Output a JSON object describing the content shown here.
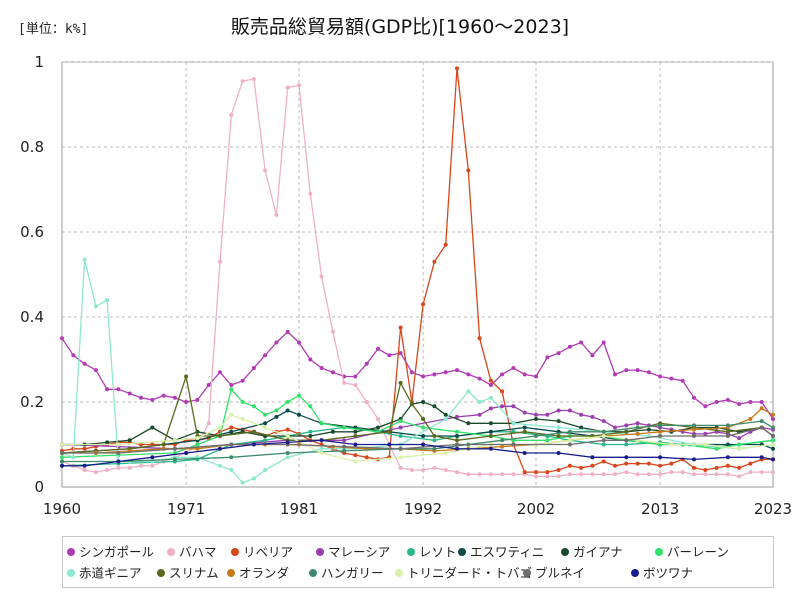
{
  "header": {
    "unit": "[単位：k%]",
    "title": "販売品総貿易額(GDP比)[1960〜2023]"
  },
  "chart_data": {
    "type": "line",
    "title": "販売品総貿易額(GDP比)[1960〜2023]",
    "xlabel": "",
    "ylabel": "",
    "unit": "[単位：k%]",
    "xlim": [
      1960,
      2023
    ],
    "ylim": [
      0,
      1
    ],
    "x_ticks": [
      1960,
      1971,
      1981,
      1992,
      2002,
      2013,
      2023
    ],
    "y_ticks": [
      0,
      0.2,
      0.4,
      0.6,
      0.8,
      1
    ],
    "y_tick_labels": [
      "0",
      "0.2",
      "0.4",
      "0.6",
      "0.8",
      "1"
    ],
    "grid": true,
    "legend_position": "bottom",
    "series": [
      {
        "name": "シンガポール",
        "color": "#b23bb5",
        "x": [
          1960,
          1961,
          1962,
          1963,
          1964,
          1965,
          1966,
          1967,
          1968,
          1969,
          1970,
          1971,
          1972,
          1973,
          1974,
          1975,
          1976,
          1977,
          1978,
          1979,
          1980,
          1981,
          1982,
          1983,
          1984,
          1985,
          1986,
          1987,
          1988,
          1989,
          1990,
          1991,
          1992,
          1993,
          1994,
          1995,
          1996,
          1997,
          1998,
          1999,
          2000,
          2001,
          2002,
          2003,
          2004,
          2005,
          2006,
          2007,
          2008,
          2009,
          2010,
          2011,
          2012,
          2013,
          2014,
          2015,
          2016,
          2017,
          2018,
          2019,
          2020,
          2021,
          2022,
          2023
        ],
        "y": [
          0.35,
          0.31,
          0.29,
          0.275,
          0.23,
          0.23,
          0.22,
          0.21,
          0.205,
          0.215,
          0.21,
          0.2,
          0.205,
          0.24,
          0.27,
          0.24,
          0.25,
          0.28,
          0.31,
          0.34,
          0.365,
          0.34,
          0.3,
          0.28,
          0.27,
          0.26,
          0.26,
          0.29,
          0.325,
          0.31,
          0.315,
          0.27,
          0.26,
          0.265,
          0.27,
          0.275,
          0.265,
          0.255,
          0.24,
          0.265,
          0.28,
          0.265,
          0.26,
          0.305,
          0.315,
          0.33,
          0.34,
          0.31,
          0.34,
          0.265,
          0.275,
          0.275,
          0.27,
          0.26,
          0.255,
          0.25,
          0.21,
          0.19,
          0.2,
          0.205,
          0.195,
          0.2,
          0.2,
          0.16
        ]
      },
      {
        "name": "バハマ",
        "color": "#f0b0c8",
        "x": [
          1960,
          1961,
          1962,
          1963,
          1964,
          1965,
          1966,
          1967,
          1968,
          1969,
          1970,
          1971,
          1972,
          1973,
          1974,
          1975,
          1976,
          1977,
          1978,
          1979,
          1980,
          1981,
          1982,
          1983,
          1984,
          1985,
          1986,
          1987,
          1988,
          1989,
          1990,
          1991,
          1992,
          1993,
          1994,
          1995,
          1996,
          1997,
          1998,
          1999,
          2000,
          2001,
          2002,
          2003,
          2004,
          2005,
          2006,
          2007,
          2008,
          2009,
          2010,
          2011,
          2012,
          2013,
          2014,
          2015,
          2016,
          2017,
          2018,
          2019,
          2020,
          2021,
          2022,
          2023
        ],
        "y": [
          0.06,
          0.05,
          0.04,
          0.035,
          0.04,
          0.045,
          0.045,
          0.05,
          0.05,
          0.06,
          0.07,
          0.08,
          0.1,
          0.15,
          0.53,
          0.875,
          0.955,
          0.96,
          0.745,
          0.64,
          0.94,
          0.945,
          0.69,
          0.495,
          0.365,
          0.245,
          0.24,
          0.2,
          0.16,
          0.1,
          0.045,
          0.04,
          0.04,
          0.045,
          0.04,
          0.035,
          0.03,
          0.03,
          0.03,
          0.03,
          0.03,
          0.03,
          0.025,
          0.025,
          0.025,
          0.03,
          0.03,
          0.03,
          0.03,
          0.03,
          0.035,
          0.03,
          0.03,
          0.03,
          0.035,
          0.035,
          0.03,
          0.03,
          0.03,
          0.03,
          0.025,
          0.035,
          0.035,
          0.035
        ]
      },
      {
        "name": "リベリア",
        "color": "#d9461c",
        "x": [
          1960,
          1961,
          1962,
          1963,
          1964,
          1965,
          1966,
          1967,
          1968,
          1969,
          1970,
          1971,
          1972,
          1973,
          1974,
          1975,
          1976,
          1977,
          1978,
          1979,
          1980,
          1981,
          1982,
          1983,
          1984,
          1985,
          1986,
          1987,
          1988,
          1989,
          1990,
          1991,
          1992,
          1993,
          1994,
          1995,
          1996,
          1997,
          1998,
          1999,
          2000,
          2001,
          2002,
          2003,
          2004,
          2005,
          2006,
          2007,
          2008,
          2009,
          2010,
          2011,
          2012,
          2013,
          2014,
          2015,
          2016,
          2017,
          2018,
          2019,
          2020,
          2021,
          2022,
          2023
        ],
        "y": [
          0.085,
          0.09,
          0.09,
          0.095,
          0.1,
          0.105,
          0.105,
          0.1,
          0.1,
          0.1,
          0.1,
          0.11,
          0.11,
          0.115,
          0.13,
          0.14,
          0.135,
          0.13,
          0.12,
          0.13,
          0.135,
          0.125,
          0.11,
          0.1,
          0.09,
          0.08,
          0.075,
          0.07,
          0.065,
          0.07,
          0.375,
          0.2,
          0.43,
          0.53,
          0.57,
          0.985,
          0.745,
          0.35,
          0.25,
          0.225,
          0.1,
          0.035,
          0.035,
          0.035,
          0.04,
          0.05,
          0.045,
          0.05,
          0.06,
          0.05,
          0.055,
          0.055,
          0.055,
          0.05,
          0.055,
          0.065,
          0.045,
          0.04,
          0.045,
          0.05,
          0.045,
          0.055,
          0.065,
          0.065
        ]
      },
      {
        "name": "マレーシア",
        "color": "#9b3fb0",
        "x": [
          1960,
          1965,
          1970,
          1975,
          1980,
          1985,
          1990,
          1995,
          1997,
          1998,
          1999,
          2000,
          2001,
          2002,
          2003,
          2004,
          2005,
          2006,
          2007,
          2008,
          2009,
          2010,
          2011,
          2012,
          2013,
          2014,
          2015,
          2016,
          2017,
          2018,
          2019,
          2020,
          2021,
          2022,
          2023
        ],
        "y": [
          0.1,
          0.095,
          0.09,
          0.1,
          0.11,
          0.11,
          0.14,
          0.165,
          0.17,
          0.185,
          0.19,
          0.19,
          0.175,
          0.17,
          0.17,
          0.18,
          0.18,
          0.17,
          0.165,
          0.155,
          0.14,
          0.145,
          0.15,
          0.145,
          0.14,
          0.135,
          0.13,
          0.125,
          0.125,
          0.13,
          0.125,
          0.115,
          0.13,
          0.14,
          0.135
        ]
      },
      {
        "name": "レソト",
        "color": "#2ab88a",
        "x": [
          1960,
          1965,
          1970,
          1972,
          1975,
          1978,
          1980,
          1982,
          1985,
          1988,
          1990,
          1993,
          1995,
          1998,
          2000,
          2003,
          2005,
          2008,
          2010,
          2013,
          2015,
          2018,
          2020,
          2023
        ],
        "y": [
          0.05,
          0.055,
          0.06,
          0.065,
          0.1,
          0.11,
          0.12,
          0.13,
          0.14,
          0.13,
          0.12,
          0.11,
          0.12,
          0.13,
          0.13,
          0.12,
          0.11,
          0.1,
          0.1,
          0.105,
          0.1,
          0.095,
          0.1,
          0.11
        ]
      },
      {
        "name": "エスワティニ",
        "color": "#0b4a4a",
        "x": [
          1960,
          1963,
          1966,
          1969,
          1972,
          1975,
          1978,
          1979,
          1980,
          1981,
          1983,
          1986,
          1989,
          1992,
          1995,
          1998,
          2001,
          2004,
          2007,
          2010,
          2013,
          2016,
          2019,
          2022,
          2023
        ],
        "y": [
          0.08,
          0.085,
          0.09,
          0.1,
          0.11,
          0.13,
          0.15,
          0.165,
          0.18,
          0.17,
          0.15,
          0.14,
          0.13,
          0.12,
          0.12,
          0.13,
          0.14,
          0.13,
          0.12,
          0.11,
          0.1,
          0.1,
          0.1,
          0.1,
          0.09
        ]
      },
      {
        "name": "ガイアナ",
        "color": "#1c4a2c",
        "x": [
          1960,
          1962,
          1964,
          1966,
          1968,
          1970,
          1972,
          1974,
          1976,
          1978,
          1980,
          1982,
          1984,
          1986,
          1988,
          1990,
          1991,
          1992,
          1993,
          1994,
          1996,
          1998,
          2000,
          2002,
          2004,
          2006,
          2008,
          2010,
          2012,
          2014,
          2016,
          2018,
          2020,
          2022,
          2023
        ],
        "y": [
          0.1,
          0.1,
          0.105,
          0.11,
          0.14,
          0.11,
          0.13,
          0.12,
          0.13,
          0.12,
          0.12,
          0.12,
          0.13,
          0.13,
          0.14,
          0.16,
          0.195,
          0.2,
          0.19,
          0.17,
          0.15,
          0.15,
          0.15,
          0.16,
          0.155,
          0.14,
          0.13,
          0.13,
          0.135,
          0.13,
          0.14,
          0.14,
          0.13,
          0.14,
          0.12
        ]
      },
      {
        "name": "バーレーン",
        "color": "#33e06a",
        "x": [
          1960,
          1965,
          1970,
          1972,
          1974,
          1975,
          1976,
          1977,
          1978,
          1979,
          1980,
          1981,
          1982,
          1983,
          1985,
          1988,
          1990,
          1992,
          1995,
          1998,
          2000,
          2003,
          2005,
          2008,
          2010,
          2013,
          2015,
          2018,
          2020,
          2023
        ],
        "y": [
          0.07,
          0.075,
          0.08,
          0.1,
          0.12,
          0.23,
          0.2,
          0.19,
          0.17,
          0.18,
          0.2,
          0.215,
          0.19,
          0.15,
          0.14,
          0.13,
          0.155,
          0.14,
          0.13,
          0.12,
          0.11,
          0.11,
          0.12,
          0.12,
          0.11,
          0.1,
          0.1,
          0.09,
          0.1,
          0.11
        ]
      },
      {
        "name": "赤道ギニア",
        "color": "#8de8d0",
        "x": [
          1960,
          1961,
          1962,
          1963,
          1964,
          1965,
          1966,
          1968,
          1970,
          1972,
          1974,
          1975,
          1976,
          1977,
          1978,
          1980,
          1983,
          1986,
          1990,
          1994,
          1996,
          1997,
          1998,
          2000,
          2004,
          2008,
          2012,
          2016,
          2020,
          2023
        ],
        "y": [
          0.08,
          0.07,
          0.535,
          0.425,
          0.44,
          0.06,
          0.06,
          0.06,
          0.07,
          0.07,
          0.05,
          0.04,
          0.01,
          0.02,
          0.04,
          0.07,
          0.09,
          0.09,
          0.1,
          0.16,
          0.225,
          0.2,
          0.21,
          0.15,
          0.14,
          0.13,
          0.12,
          0.1,
          0.09,
          0.1
        ]
      },
      {
        "name": "スリナム",
        "color": "#5a6a1e",
        "x": [
          1960,
          1963,
          1966,
          1969,
          1971,
          1972,
          1974,
          1977,
          1980,
          1983,
          1986,
          1989,
          1990,
          1991,
          1992,
          1993,
          1995,
          1998,
          2001,
          2004,
          2007,
          2010,
          2013,
          2016,
          2019,
          2022,
          2023
        ],
        "y": [
          0.08,
          0.085,
          0.09,
          0.1,
          0.26,
          0.12,
          0.12,
          0.13,
          0.11,
          0.11,
          0.12,
          0.13,
          0.245,
          0.195,
          0.16,
          0.12,
          0.11,
          0.12,
          0.13,
          0.12,
          0.12,
          0.13,
          0.15,
          0.14,
          0.13,
          0.14,
          0.12
        ]
      },
      {
        "name": "オランダ",
        "color": "#c87a1a",
        "x": [
          1960,
          1963,
          1966,
          1969,
          1972,
          1975,
          1978,
          1981,
          1984,
          1987,
          1990,
          1993,
          1996,
          1999,
          2002,
          2005,
          2008,
          2011,
          2013,
          2016,
          2019,
          2021,
          2022,
          2023
        ],
        "y": [
          0.08,
          0.08,
          0.085,
          0.09,
          0.09,
          0.1,
          0.1,
          0.1,
          0.095,
          0.09,
          0.09,
          0.085,
          0.09,
          0.095,
          0.1,
          0.11,
          0.12,
          0.125,
          0.13,
          0.135,
          0.14,
          0.16,
          0.185,
          0.17
        ]
      },
      {
        "name": "ハンガリー",
        "color": "#3e8a6a",
        "x": [
          1960,
          1965,
          1970,
          1975,
          1980,
          1985,
          1990,
          1993,
          1996,
          1999,
          2002,
          2005,
          2008,
          2011,
          2013,
          2016,
          2019,
          2022,
          2023
        ],
        "y": [
          0.06,
          0.06,
          0.065,
          0.07,
          0.08,
          0.085,
          0.09,
          0.09,
          0.1,
          0.11,
          0.12,
          0.13,
          0.13,
          0.14,
          0.145,
          0.145,
          0.145,
          0.155,
          0.14
        ]
      },
      {
        "name": "トリニダード・トバゴ",
        "color": "#d8f0a8",
        "x": [
          1960,
          1965,
          1970,
          1972,
          1974,
          1975,
          1976,
          1978,
          1980,
          1983,
          1986,
          1990,
          1994,
          1998,
          2002,
          2005,
          2008,
          2011,
          2014,
          2017,
          2020,
          2023
        ],
        "y": [
          0.1,
          0.1,
          0.11,
          0.115,
          0.14,
          0.17,
          0.16,
          0.14,
          0.12,
          0.08,
          0.06,
          0.07,
          0.08,
          0.1,
          0.1,
          0.11,
          0.12,
          0.11,
          0.1,
          0.1,
          0.09,
          0.1
        ]
      },
      {
        "name": "ブルネイ",
        "color": "#6e6e6e",
        "x": [
          1960,
          1965,
          1970,
          1975,
          1980,
          1985,
          1990,
          1995,
          2000,
          2005,
          2008,
          2010,
          2013,
          2016,
          2019,
          2022,
          2023
        ],
        "y": [
          0.08,
          0.08,
          0.09,
          0.1,
          0.1,
          0.095,
          0.09,
          0.1,
          0.1,
          0.1,
          0.11,
          0.11,
          0.12,
          0.12,
          0.12,
          0.14,
          0.12
        ]
      },
      {
        "name": "ボツワナ",
        "color": "#1a1e8c",
        "x": [
          1960,
          1962,
          1965,
          1968,
          1971,
          1974,
          1977,
          1980,
          1983,
          1986,
          1989,
          1992,
          1995,
          1998,
          2001,
          2004,
          2007,
          2010,
          2013,
          2016,
          2019,
          2022,
          2023
        ],
        "y": [
          0.05,
          0.05,
          0.06,
          0.07,
          0.08,
          0.09,
          0.1,
          0.105,
          0.11,
          0.1,
          0.1,
          0.1,
          0.09,
          0.09,
          0.08,
          0.08,
          0.07,
          0.07,
          0.07,
          0.065,
          0.07,
          0.07,
          0.065
        ]
      }
    ]
  }
}
